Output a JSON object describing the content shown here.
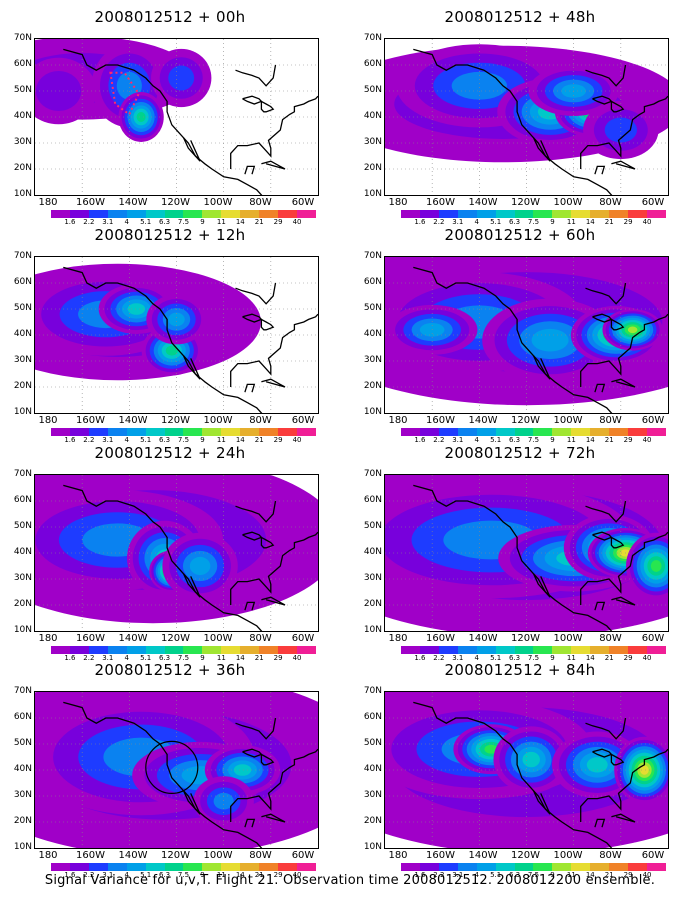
{
  "panels": [
    {
      "title": "2008012512 + 00h",
      "col": 0,
      "row": 0,
      "features": [
        "box"
      ]
    },
    {
      "title": "2008012512 + 48h",
      "col": 1,
      "row": 0,
      "features": []
    },
    {
      "title": "2008012512 + 12h",
      "col": 0,
      "row": 1,
      "features": []
    },
    {
      "title": "2008012512 + 60h",
      "col": 1,
      "row": 1,
      "features": []
    },
    {
      "title": "2008012512 + 24h",
      "col": 0,
      "row": 2,
      "features": []
    },
    {
      "title": "2008012512 + 72h",
      "col": 1,
      "row": 2,
      "features": []
    },
    {
      "title": "2008012512 + 36h",
      "col": 0,
      "row": 3,
      "features": [
        "circle"
      ]
    },
    {
      "title": "2008012512 + 84h",
      "col": 1,
      "row": 3,
      "features": []
    }
  ],
  "y_labels": [
    "70N",
    "60N",
    "50N",
    "40N",
    "30N",
    "20N",
    "10N"
  ],
  "x_labels": [
    "180",
    "160W",
    "140W",
    "120W",
    "100W",
    "80W",
    "60W"
  ],
  "colorbar": {
    "values": [
      "1.6",
      "2.2",
      "3.1",
      "4",
      "5.1",
      "6.3",
      "7.5",
      "9",
      "11",
      "14",
      "21",
      "29",
      "40"
    ],
    "colors": [
      "#a000c8",
      "#7800dc",
      "#1e3cff",
      "#0a82f0",
      "#00a0e8",
      "#00c8c8",
      "#00d28c",
      "#28e650",
      "#a0e632",
      "#e6dc32",
      "#e6af2d",
      "#f08228",
      "#fa3c3c",
      "#f01e96"
    ]
  },
  "caption": "Signal Variance for u,v,T. Flight 21. Observation time 2008012512. 2008012200 ensemble."
}
